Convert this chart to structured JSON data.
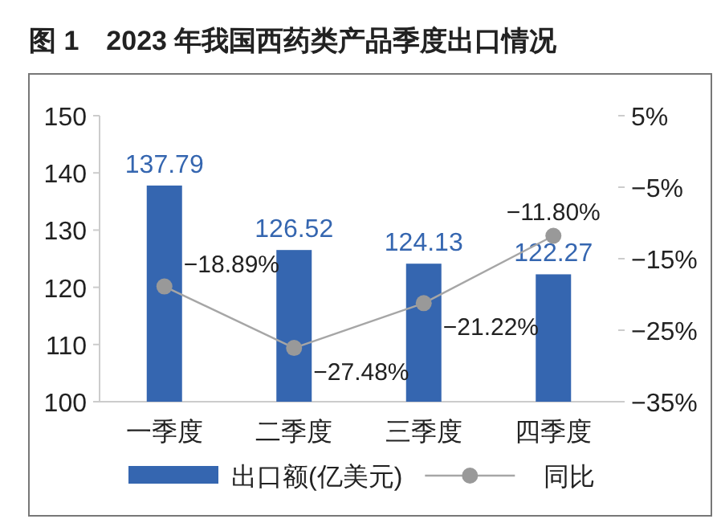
{
  "chart_data": {
    "type": "bar",
    "title": "图 1　2023 年我国西药类产品季度出口情况",
    "categories": [
      "一季度",
      "二季度",
      "三季度",
      "四季度"
    ],
    "series": [
      {
        "name": "出口额(亿美元)",
        "color": "#3566b0",
        "values": [
          137.79,
          126.52,
          124.13,
          122.27
        ],
        "value_labels": [
          "137.79",
          "126.52",
          "124.13",
          "122.27"
        ]
      },
      {
        "name": "同比",
        "type": "line",
        "axis": "y2",
        "color": "#a6a6a6",
        "marker": "circle",
        "values": [
          -18.89,
          -27.48,
          -21.22,
          -11.8
        ],
        "value_labels": [
          "−18.89%",
          "−27.48%",
          "−21.22%",
          "−11.80%"
        ]
      }
    ],
    "ylim": [
      100,
      150
    ],
    "yticks": [
      100,
      110,
      120,
      130,
      140,
      150
    ],
    "y2lim": [
      -35,
      5
    ],
    "y2ticks": [
      {
        "value": -35,
        "label": "−35%"
      },
      {
        "value": -25,
        "label": "−25%"
      },
      {
        "value": -15,
        "label": "−15%"
      },
      {
        "value": -5,
        "label": "−5%"
      },
      {
        "value": 5,
        "label": "5%"
      }
    ],
    "legend": "bottom",
    "grid": false
  }
}
